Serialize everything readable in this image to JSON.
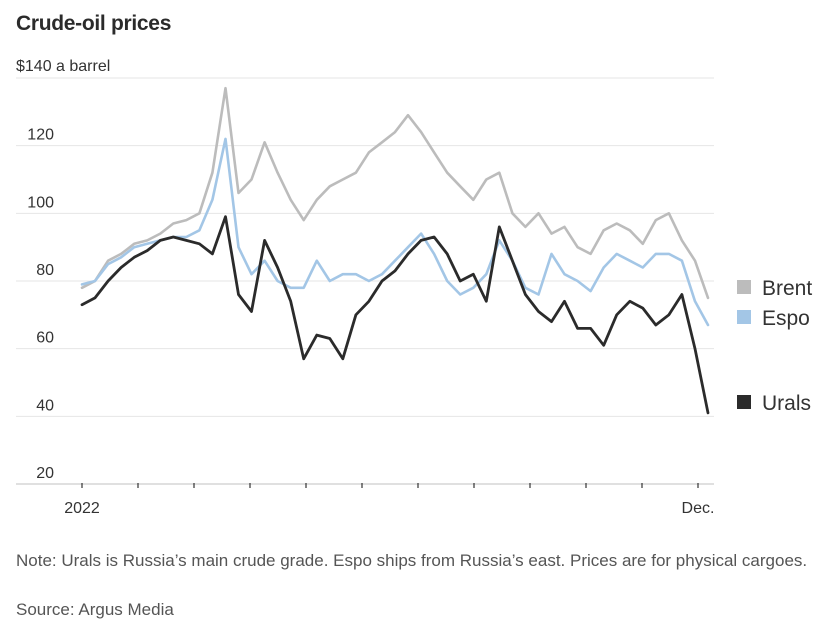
{
  "header": {
    "title": "Crude-oil prices",
    "unit_label": "$140 a barrel"
  },
  "footer": {
    "note": "Note: Urals is Russia’s main crude grade. Espo ships from Russia’s east. Prices are for physical cargoes.",
    "source": "Source: Argus Media"
  },
  "chart_data": {
    "type": "line",
    "title": "Crude-oil prices",
    "ylabel": "$ a barrel",
    "xlabel": "",
    "ylim": [
      20,
      140
    ],
    "yticks": [
      20,
      40,
      60,
      80,
      100,
      120,
      140
    ],
    "ytick_labels": [
      "20",
      "40",
      "60",
      "80",
      "100",
      "120",
      "$140 a barrel"
    ],
    "xlim": [
      "2022-01-01",
      "2022-12-08"
    ],
    "x_tick_months": [
      "Jan",
      "Feb",
      "Mar",
      "Apr",
      "May",
      "Jun",
      "Jul",
      "Aug",
      "Sep",
      "Oct",
      "Nov",
      "Dec"
    ],
    "x_tick_labels": [
      {
        "month_index": 0,
        "label": "2022"
      },
      {
        "month_index": 11,
        "label": "Dec."
      }
    ],
    "grid": true,
    "legend": "right",
    "x_weeks": [
      0,
      1,
      2,
      3,
      4,
      5,
      6,
      7,
      8,
      9,
      10,
      11,
      12,
      13,
      14,
      15,
      16,
      17,
      18,
      19,
      20,
      21,
      22,
      23,
      24,
      25,
      26,
      27,
      28,
      29,
      30,
      31,
      32,
      33,
      34,
      35,
      36,
      37,
      38,
      39,
      40,
      41,
      42,
      43,
      44,
      45,
      46,
      47,
      48
    ],
    "series": [
      {
        "name": "Brent",
        "color": "#bcbcbc",
        "values": [
          78,
          80,
          86,
          88,
          91,
          92,
          94,
          97,
          98,
          100,
          112,
          137,
          106,
          110,
          121,
          112,
          104,
          98,
          104,
          108,
          110,
          112,
          118,
          121,
          124,
          129,
          124,
          118,
          112,
          108,
          104,
          110,
          112,
          100,
          96,
          100,
          94,
          96,
          90,
          88,
          95,
          97,
          95,
          91,
          98,
          100,
          92,
          86,
          75
        ]
      },
      {
        "name": "Espo",
        "color": "#a3c6e6",
        "values": [
          79,
          80,
          85,
          87,
          90,
          91,
          92,
          93,
          93,
          95,
          104,
          122,
          90,
          82,
          86,
          80,
          78,
          78,
          86,
          80,
          82,
          82,
          80,
          82,
          86,
          90,
          94,
          88,
          80,
          76,
          78,
          82,
          92,
          86,
          78,
          76,
          88,
          82,
          80,
          77,
          84,
          88,
          86,
          84,
          88,
          88,
          86,
          74,
          67
        ]
      },
      {
        "name": "Urals",
        "color": "#2b2b2b",
        "values": [
          73,
          75,
          80,
          84,
          87,
          89,
          92,
          93,
          92,
          91,
          88,
          99,
          76,
          71,
          92,
          84,
          74,
          57,
          64,
          63,
          57,
          70,
          74,
          80,
          83,
          88,
          92,
          93,
          88,
          80,
          82,
          74,
          96,
          86,
          76,
          71,
          68,
          74,
          66,
          66,
          61,
          70,
          74,
          72,
          67,
          70,
          76,
          60,
          41
        ]
      }
    ],
    "legend_entries": [
      "Brent",
      "Espo",
      "Urals"
    ]
  }
}
